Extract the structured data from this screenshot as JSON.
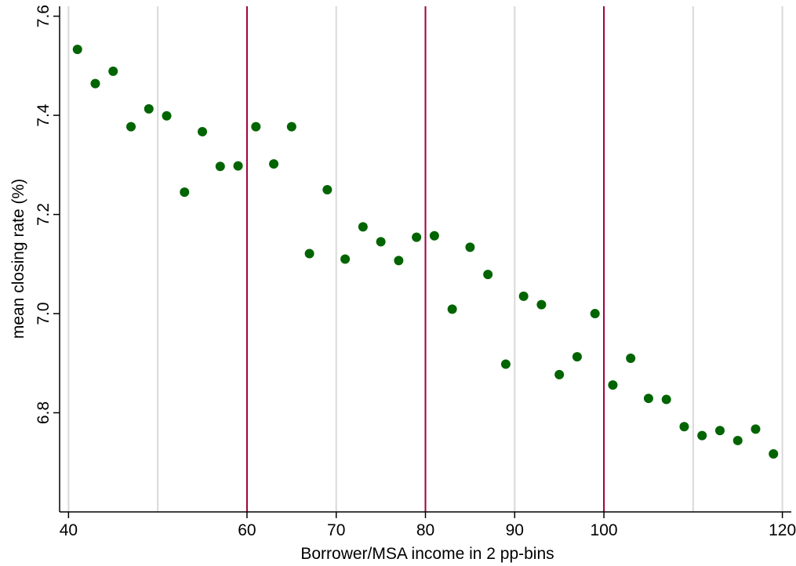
{
  "chart_data": {
    "type": "scatter",
    "title": "",
    "xlabel": "Borrower/MSA income in 2 pp-bins",
    "ylabel": "mean  closing rate (%)",
    "xlim": [
      39,
      121
    ],
    "ylim": [
      6.6,
      7.62
    ],
    "x_ticks": [
      40,
      60,
      70,
      80,
      90,
      100,
      120
    ],
    "x_tick_labels": [
      "40",
      "60",
      "70",
      "80",
      "90",
      "100",
      "120"
    ],
    "x_grid": [
      40,
      50,
      60,
      70,
      80,
      90,
      100,
      110,
      120
    ],
    "y_ticks": [
      6.8,
      7.0,
      7.2,
      7.4,
      7.6
    ],
    "y_tick_labels": [
      "6.8",
      "7.0",
      "7.2",
      "7.4",
      "7.6"
    ],
    "vertical_lines": [
      60,
      80,
      100
    ],
    "vertical_line_color": "#a0003c",
    "marker_color": "#006400",
    "grid_color": "#d9d9d9",
    "grid": true,
    "points": [
      {
        "x": 41,
        "y": 7.533
      },
      {
        "x": 43,
        "y": 7.464
      },
      {
        "x": 45,
        "y": 7.489
      },
      {
        "x": 47,
        "y": 7.377
      },
      {
        "x": 49,
        "y": 7.413
      },
      {
        "x": 51,
        "y": 7.399
      },
      {
        "x": 53,
        "y": 7.245
      },
      {
        "x": 55,
        "y": 7.367
      },
      {
        "x": 57,
        "y": 7.297
      },
      {
        "x": 59,
        "y": 7.298
      },
      {
        "x": 61,
        "y": 7.377
      },
      {
        "x": 63,
        "y": 7.302
      },
      {
        "x": 65,
        "y": 7.377
      },
      {
        "x": 67,
        "y": 7.121
      },
      {
        "x": 69,
        "y": 7.25
      },
      {
        "x": 71,
        "y": 7.11
      },
      {
        "x": 73,
        "y": 7.175
      },
      {
        "x": 75,
        "y": 7.145
      },
      {
        "x": 77,
        "y": 7.107
      },
      {
        "x": 79,
        "y": 7.154
      },
      {
        "x": 81,
        "y": 7.157
      },
      {
        "x": 83,
        "y": 7.009
      },
      {
        "x": 85,
        "y": 7.134
      },
      {
        "x": 87,
        "y": 7.079
      },
      {
        "x": 89,
        "y": 6.898
      },
      {
        "x": 91,
        "y": 7.035
      },
      {
        "x": 93,
        "y": 7.018
      },
      {
        "x": 95,
        "y": 6.877
      },
      {
        "x": 97,
        "y": 6.913
      },
      {
        "x": 99,
        "y": 7.0
      },
      {
        "x": 101,
        "y": 6.856
      },
      {
        "x": 103,
        "y": 6.91
      },
      {
        "x": 105,
        "y": 6.829
      },
      {
        "x": 107,
        "y": 6.827
      },
      {
        "x": 109,
        "y": 6.772
      },
      {
        "x": 111,
        "y": 6.754
      },
      {
        "x": 113,
        "y": 6.764
      },
      {
        "x": 115,
        "y": 6.744
      },
      {
        "x": 117,
        "y": 6.767
      },
      {
        "x": 119,
        "y": 6.717
      }
    ]
  }
}
